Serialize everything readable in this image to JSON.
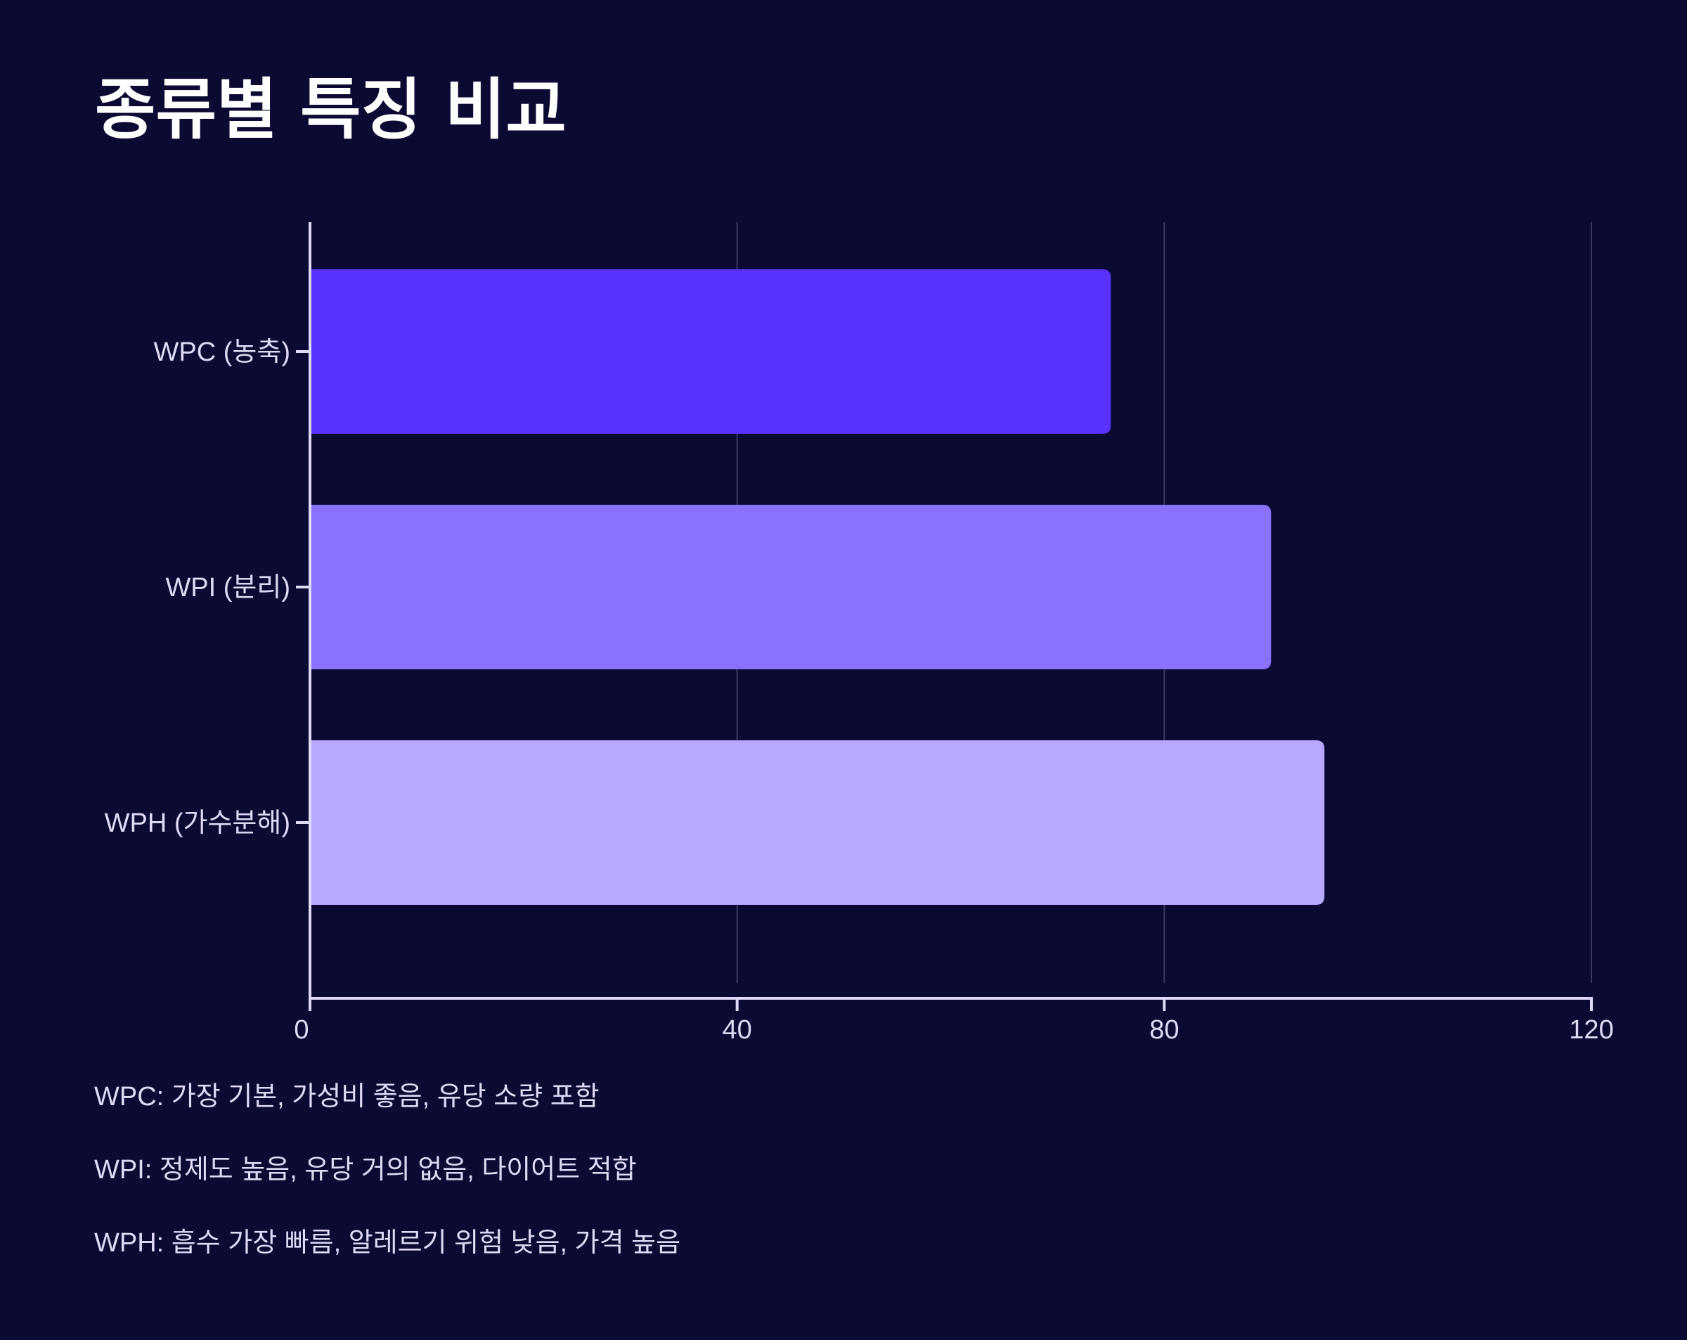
{
  "chart_data": {
    "type": "bar",
    "orientation": "horizontal",
    "title": "종류별 특징 비교",
    "categories": [
      "WPC (농축)",
      "WPI (분리)",
      "WPH (가수분해)"
    ],
    "values": [
      75,
      90,
      95
    ],
    "bar_colors": [
      "#5a32ff",
      "#8a72ff",
      "#b9a8ff"
    ],
    "xlim": [
      0,
      120
    ],
    "x_ticks": [
      0,
      40,
      80,
      120
    ],
    "x_tick_labels": [
      "0",
      "40",
      "80",
      "120"
    ],
    "grid": true,
    "grid_axis": "x"
  },
  "notes": [
    "WPC: 가장 기본, 가성비 좋음, 유당 소량 포함",
    "WPI: 정제도 높음, 유당 거의 없음, 다이어트 적합",
    "WPH: 흡수 가장 빠름, 알레르기 위험 낮음, 가격 높음"
  ],
  "colors": {
    "background": "#0b0a33",
    "text": "#dcdaf5",
    "title": "#ffffff",
    "axis": "#dcdaf5",
    "grid": "#3b3a60"
  }
}
